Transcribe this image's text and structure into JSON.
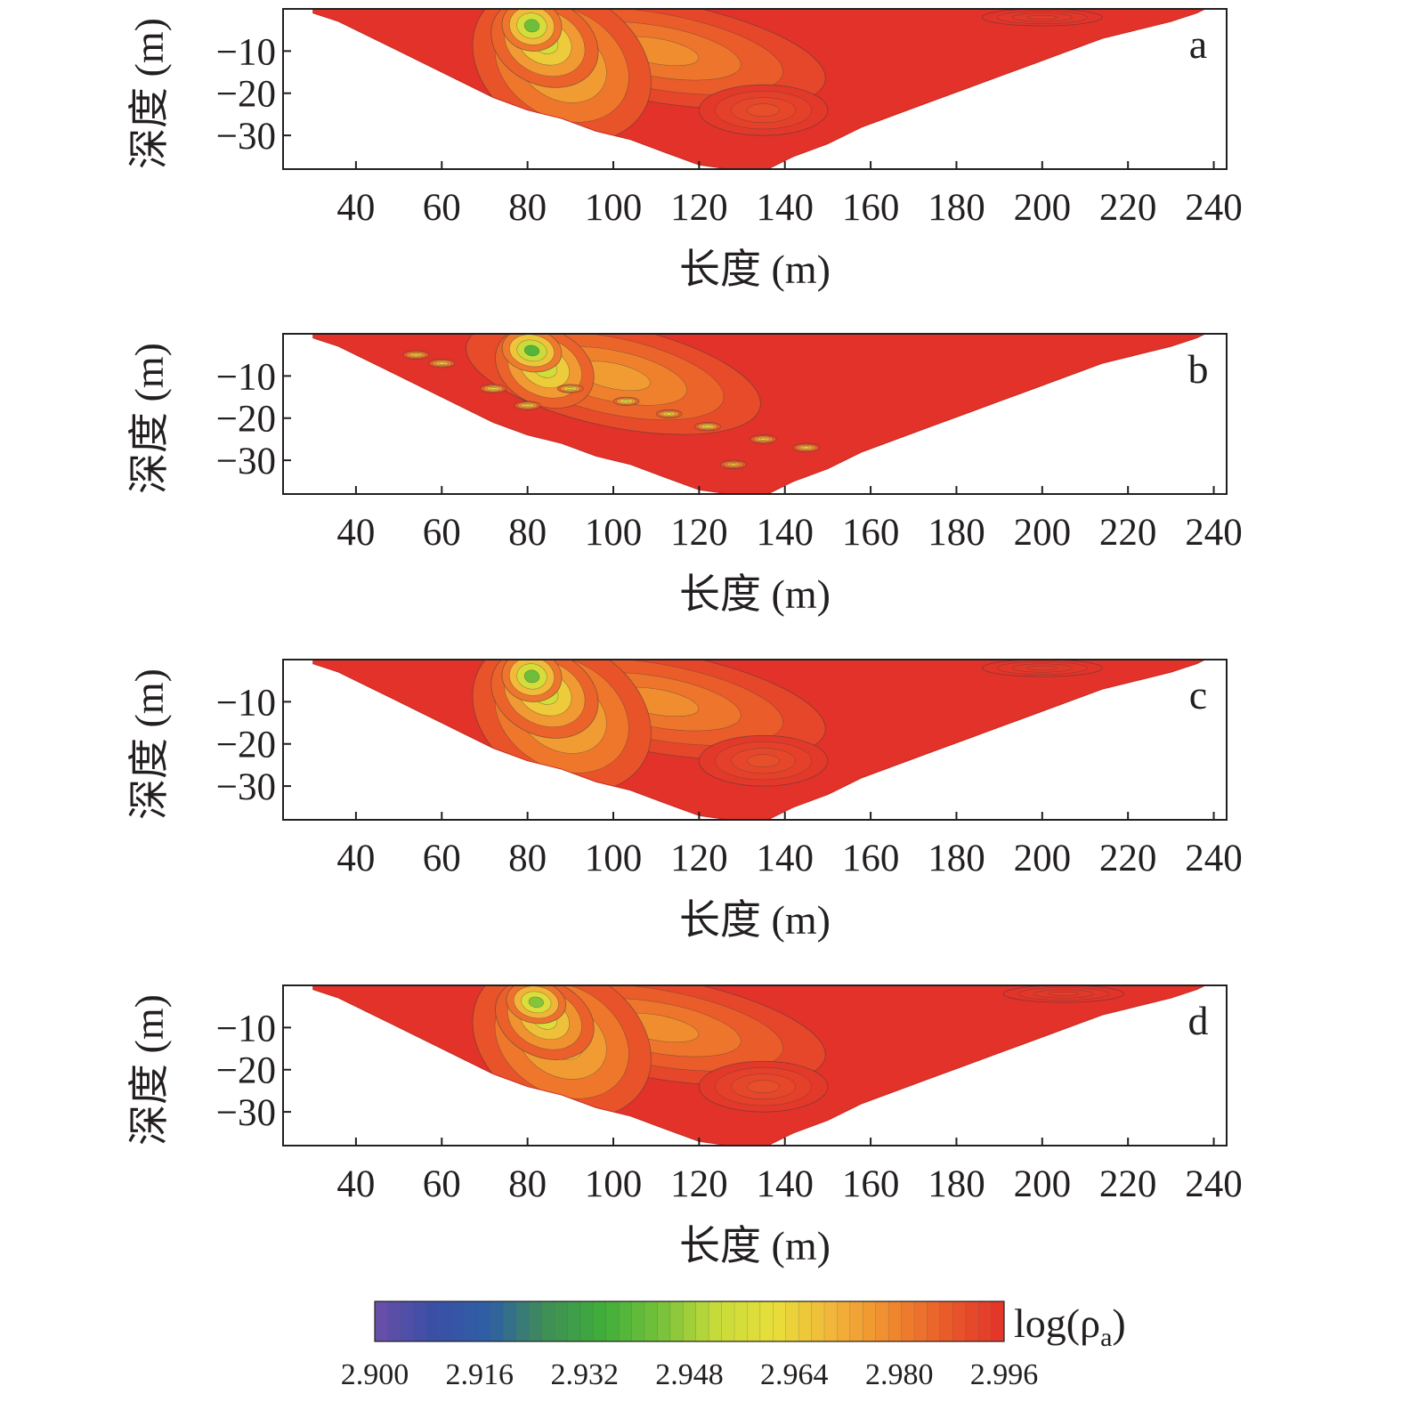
{
  "chart_data": {
    "type": "heatmap",
    "description_note": "",
    "xlabel": "长度 (m)",
    "ylabel": "深度 (m)",
    "xlim": [
      23,
      243
    ],
    "ylim": [
      -38,
      0
    ],
    "xticks": [
      "40",
      "60",
      "80",
      "100",
      "120",
      "140",
      "160",
      "180",
      "200",
      "220",
      "240"
    ],
    "yticks": [
      "−10",
      "−20",
      "−30"
    ],
    "xtick_values": [
      40,
      60,
      80,
      100,
      120,
      140,
      160,
      180,
      200,
      220,
      240
    ],
    "ytick_values": [
      -10,
      -20,
      -30
    ],
    "section_outline": [
      [
        30,
        -1
      ],
      [
        36,
        -3
      ],
      [
        40,
        -5
      ],
      [
        48,
        -9
      ],
      [
        56,
        -13
      ],
      [
        64,
        -17
      ],
      [
        72,
        -21
      ],
      [
        80,
        -24
      ],
      [
        88,
        -26
      ],
      [
        96,
        -29
      ],
      [
        104,
        -31
      ],
      [
        112,
        -34
      ],
      [
        120,
        -37
      ],
      [
        127,
        -38
      ],
      [
        136,
        -38
      ],
      [
        142,
        -35
      ],
      [
        150,
        -32
      ],
      [
        158,
        -28
      ],
      [
        166,
        -25
      ],
      [
        174,
        -22
      ],
      [
        182,
        -19
      ],
      [
        190,
        -16
      ],
      [
        198,
        -13
      ],
      [
        206,
        -10
      ],
      [
        214,
        -7
      ],
      [
        222,
        -5
      ],
      [
        230,
        -3
      ],
      [
        236,
        -1
      ],
      [
        238,
        0
      ],
      [
        30,
        0
      ]
    ],
    "panels": [
      {
        "label": "a",
        "anomalies": [
          {
            "x": 81,
            "y": -4,
            "value": 2.942,
            "rx": 7,
            "ry": 6,
            "rot": 10
          },
          {
            "x": 84,
            "y": -8,
            "value": 2.955,
            "rx": 13,
            "ry": 10,
            "rot": 25
          },
          {
            "x": 88,
            "y": -13,
            "value": 2.968,
            "rx": 22,
            "ry": 17,
            "rot": 30
          },
          {
            "x": 110,
            "y": -10,
            "value": 2.978,
            "rx": 40,
            "ry": 12,
            "rot": 10
          },
          {
            "x": 135,
            "y": -24,
            "value": 2.99,
            "rx": 15,
            "ry": 6,
            "rot": 0
          },
          {
            "x": 200,
            "y": -2,
            "value": 2.994,
            "rx": 14,
            "ry": 2,
            "rot": 0
          }
        ]
      },
      {
        "label": "b",
        "anomalies": [
          {
            "x": 81,
            "y": -4,
            "value": 2.938,
            "rx": 7,
            "ry": 5,
            "rot": 10
          },
          {
            "x": 84,
            "y": -8,
            "value": 2.955,
            "rx": 12,
            "ry": 9,
            "rot": 25
          },
          {
            "x": 100,
            "y": -10,
            "value": 2.975,
            "rx": 35,
            "ry": 12,
            "rot": 12
          },
          {
            "x": 54,
            "y": -5,
            "value": 2.964,
            "rx": 3,
            "ry": 1,
            "rot": 0
          },
          {
            "x": 60,
            "y": -7,
            "value": 2.964,
            "rx": 3,
            "ry": 1,
            "rot": 0
          },
          {
            "x": 72,
            "y": -13,
            "value": 2.96,
            "rx": 3,
            "ry": 1,
            "rot": 0
          },
          {
            "x": 90,
            "y": -13,
            "value": 2.955,
            "rx": 3,
            "ry": 1,
            "rot": 0
          },
          {
            "x": 103,
            "y": -16,
            "value": 2.955,
            "rx": 3,
            "ry": 1,
            "rot": 0
          },
          {
            "x": 113,
            "y": -19,
            "value": 2.96,
            "rx": 3,
            "ry": 1,
            "rot": 0
          },
          {
            "x": 122,
            "y": -22,
            "value": 2.96,
            "rx": 3,
            "ry": 1,
            "rot": 0
          },
          {
            "x": 135,
            "y": -25,
            "value": 2.964,
            "rx": 3,
            "ry": 1,
            "rot": 0
          },
          {
            "x": 145,
            "y": -27,
            "value": 2.964,
            "rx": 3,
            "ry": 1,
            "rot": 0
          },
          {
            "x": 128,
            "y": -31,
            "value": 2.968,
            "rx": 3,
            "ry": 1,
            "rot": 0
          },
          {
            "x": 80,
            "y": -17,
            "value": 2.96,
            "rx": 3,
            "ry": 1,
            "rot": 0
          }
        ]
      },
      {
        "label": "c",
        "anomalies": [
          {
            "x": 81,
            "y": -4,
            "value": 2.942,
            "rx": 7,
            "ry": 6,
            "rot": 10
          },
          {
            "x": 84,
            "y": -8,
            "value": 2.955,
            "rx": 13,
            "ry": 10,
            "rot": 25
          },
          {
            "x": 88,
            "y": -13,
            "value": 2.968,
            "rx": 22,
            "ry": 17,
            "rot": 30
          },
          {
            "x": 110,
            "y": -10,
            "value": 2.978,
            "rx": 40,
            "ry": 12,
            "rot": 10
          },
          {
            "x": 135,
            "y": -24,
            "value": 2.99,
            "rx": 15,
            "ry": 6,
            "rot": 0
          },
          {
            "x": 200,
            "y": -2,
            "value": 2.994,
            "rx": 14,
            "ry": 2,
            "rot": 0
          }
        ]
      },
      {
        "label": "d",
        "anomalies": [
          {
            "x": 82,
            "y": -4,
            "value": 2.945,
            "rx": 7,
            "ry": 5,
            "rot": 10
          },
          {
            "x": 84,
            "y": -8,
            "value": 2.958,
            "rx": 12,
            "ry": 9,
            "rot": 25
          },
          {
            "x": 88,
            "y": -13,
            "value": 2.968,
            "rx": 22,
            "ry": 17,
            "rot": 30
          },
          {
            "x": 110,
            "y": -10,
            "value": 2.978,
            "rx": 40,
            "ry": 12,
            "rot": 10
          },
          {
            "x": 135,
            "y": -24,
            "value": 2.99,
            "rx": 15,
            "ry": 6,
            "rot": 0
          },
          {
            "x": 205,
            "y": -2,
            "value": 2.994,
            "rx": 14,
            "ry": 2,
            "rot": 0
          }
        ]
      }
    ],
    "background_value": 2.996,
    "colorbar": {
      "title": "log(ρ",
      "title_sub": "a",
      "title_close": ")",
      "range": [
        2.9,
        2.996
      ],
      "tick_labels": [
        "2.900",
        "2.916",
        "2.932",
        "2.948",
        "2.964",
        "2.980",
        "2.996"
      ],
      "tick_values": [
        2.9,
        2.916,
        2.932,
        2.948,
        2.964,
        2.98,
        2.996
      ],
      "colormap": [
        "#6a4fa8",
        "#3b4fa6",
        "#2e5fa5",
        "#3f8f56",
        "#3fae3a",
        "#77c23a",
        "#c8dc3a",
        "#e8de3a",
        "#f2b63a",
        "#f08a2e",
        "#ea5b2a",
        "#e2322a"
      ],
      "levels": 49
    }
  }
}
